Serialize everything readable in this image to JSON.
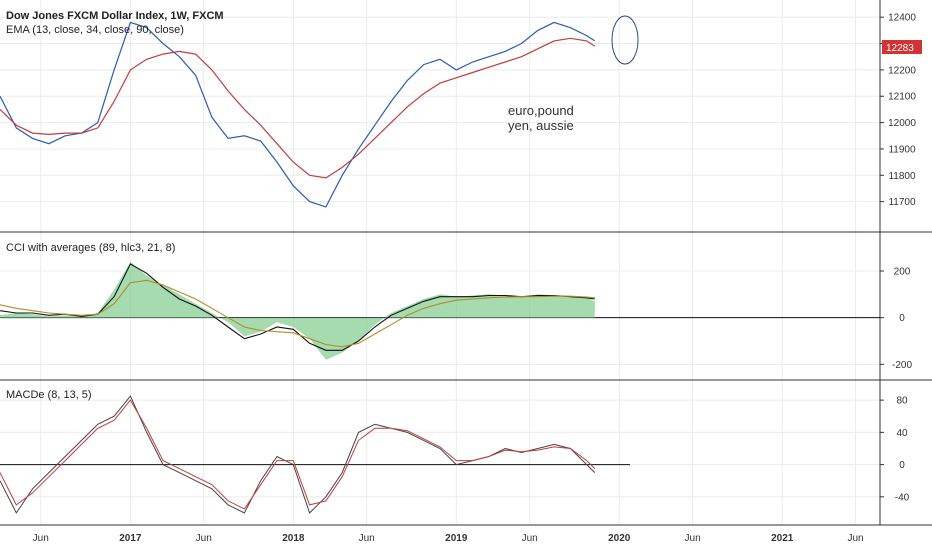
{
  "colors": {
    "blue": "#2a5cb5",
    "red": "#c43c3c",
    "green_fill": "#7fcc8b",
    "black": "#111111",
    "olive": "#b38b2a",
    "grid": "#e8ecf0",
    "badge": "#d23434"
  },
  "price_panel": {
    "title": "Dow Jones FXCM Dollar Index, 1W, FXCM",
    "indicator_label": "EMA (13, close, 34, close, 90, close)",
    "annotation_line1": "euro,pound",
    "annotation_line2": "yen, aussie",
    "last_price_badge": "12283"
  },
  "cci_panel": {
    "title": "CCI with averages (89, hlc3, 21, 8)"
  },
  "macd_panel": {
    "title": "MACDe (8, 13, 5)"
  },
  "chart_data": [
    {
      "type": "line",
      "x": [
        2016.2,
        2016.3,
        2016.4,
        2016.5,
        2016.6,
        2016.7,
        2016.8,
        2016.9,
        2017.0,
        2017.1,
        2017.2,
        2017.3,
        2017.4,
        2017.5,
        2017.6,
        2017.7,
        2017.8,
        2017.9,
        2018.0,
        2018.1,
        2018.2,
        2018.3,
        2018.4,
        2018.5,
        2018.6,
        2018.7,
        2018.8,
        2018.9,
        2019.0,
        2019.1,
        2019.2,
        2019.3,
        2019.4,
        2019.5,
        2019.6,
        2019.7,
        2019.8,
        2019.85
      ],
      "series": [
        {
          "values": [
            12100,
            11980,
            11940,
            11920,
            11950,
            11960,
            12000,
            12200,
            12380,
            12360,
            12300,
            12250,
            12180,
            12020,
            11940,
            11950,
            11930,
            11850,
            11760,
            11700,
            11680,
            11800,
            11900,
            11990,
            12080,
            12160,
            12220,
            12240,
            12200,
            12230,
            12250,
            12270,
            12300,
            12350,
            12380,
            12360,
            12330,
            12310
          ]
        },
        {
          "values": [
            12050,
            11990,
            11960,
            11955,
            11960,
            11960,
            11980,
            12080,
            12200,
            12240,
            12260,
            12270,
            12260,
            12200,
            12120,
            12050,
            11990,
            11920,
            11850,
            11800,
            11790,
            11830,
            11880,
            11940,
            12000,
            12060,
            12110,
            12150,
            12170,
            12190,
            12210,
            12230,
            12250,
            12280,
            12310,
            12320,
            12310,
            12290
          ]
        }
      ],
      "ylim": [
        11600,
        12450
      ],
      "y_ticks": [
        12400,
        12300,
        12200,
        12100,
        12000,
        11900,
        11800,
        11700
      ]
    },
    {
      "type": "area",
      "x": [
        2016.2,
        2016.3,
        2016.4,
        2016.5,
        2016.6,
        2016.7,
        2016.8,
        2016.9,
        2017.0,
        2017.1,
        2017.2,
        2017.3,
        2017.4,
        2017.5,
        2017.6,
        2017.7,
        2017.8,
        2017.9,
        2018.0,
        2018.1,
        2018.2,
        2018.3,
        2018.4,
        2018.5,
        2018.6,
        2018.7,
        2018.8,
        2018.9,
        2019.0,
        2019.1,
        2019.2,
        2019.3,
        2019.4,
        2019.5,
        2019.6,
        2019.7,
        2019.8,
        2019.85
      ],
      "series": [
        {
          "values": [
            10,
            20,
            15,
            5,
            10,
            5,
            20,
            120,
            240,
            180,
            140,
            100,
            60,
            20,
            -20,
            -80,
            -60,
            -20,
            -40,
            -90,
            -180,
            -150,
            -100,
            -30,
            20,
            50,
            80,
            100,
            90,
            95,
            100,
            95,
            90,
            100,
            95,
            90,
            85,
            70
          ]
        },
        {
          "values": [
            30,
            20,
            20,
            10,
            15,
            5,
            15,
            90,
            230,
            190,
            130,
            80,
            50,
            10,
            -40,
            -90,
            -70,
            -40,
            -50,
            -110,
            -140,
            -140,
            -100,
            -40,
            10,
            40,
            70,
            90,
            90,
            90,
            95,
            95,
            90,
            95,
            95,
            90,
            85,
            80
          ]
        },
        {
          "values": [
            55,
            40,
            30,
            20,
            15,
            10,
            15,
            60,
            150,
            160,
            140,
            110,
            80,
            40,
            0,
            -40,
            -55,
            -60,
            -65,
            -90,
            -115,
            -125,
            -110,
            -70,
            -30,
            10,
            40,
            60,
            75,
            80,
            85,
            88,
            90,
            90,
            92,
            92,
            88,
            85
          ]
        }
      ],
      "ylim": [
        -250,
        350
      ],
      "y_ticks": [
        200,
        0,
        -200
      ]
    },
    {
      "type": "line",
      "x": [
        2016.2,
        2016.3,
        2016.4,
        2016.5,
        2016.6,
        2016.7,
        2016.8,
        2016.9,
        2017.0,
        2017.1,
        2017.2,
        2017.3,
        2017.4,
        2017.5,
        2017.6,
        2017.7,
        2017.8,
        2017.9,
        2018.0,
        2018.1,
        2018.2,
        2018.3,
        2018.4,
        2018.5,
        2018.6,
        2018.7,
        2018.8,
        2018.9,
        2019.0,
        2019.1,
        2019.2,
        2019.3,
        2019.4,
        2019.5,
        2019.6,
        2019.7,
        2019.8,
        2019.85
      ],
      "series": [
        {
          "values": [
            -20,
            -60,
            -30,
            -10,
            10,
            30,
            50,
            60,
            85,
            40,
            0,
            -10,
            -20,
            -30,
            -50,
            -60,
            -20,
            10,
            0,
            -60,
            -40,
            -10,
            40,
            50,
            45,
            40,
            30,
            20,
            0,
            5,
            10,
            20,
            15,
            20,
            25,
            20,
            0,
            -10
          ]
        },
        {
          "values": [
            -10,
            -50,
            -35,
            -15,
            5,
            25,
            45,
            55,
            80,
            45,
            5,
            -5,
            -15,
            -25,
            -45,
            -55,
            -25,
            5,
            5,
            -50,
            -45,
            -15,
            30,
            45,
            45,
            42,
            32,
            22,
            5,
            5,
            10,
            18,
            16,
            18,
            22,
            20,
            5,
            -5
          ]
        }
      ],
      "ylim": [
        -70,
        100
      ],
      "y_ticks": [
        80,
        40,
        0,
        -40
      ]
    }
  ],
  "x_axis": {
    "ticks": [
      {
        "label": "Jun",
        "x": 2016.45,
        "bold": false
      },
      {
        "label": "2017",
        "x": 2017.0,
        "bold": true
      },
      {
        "label": "Jun",
        "x": 2017.45,
        "bold": false
      },
      {
        "label": "2018",
        "x": 2018.0,
        "bold": true
      },
      {
        "label": "Jun",
        "x": 2018.45,
        "bold": false
      },
      {
        "label": "2019",
        "x": 2019.0,
        "bold": true
      },
      {
        "label": "Jun",
        "x": 2019.45,
        "bold": false
      },
      {
        "label": "2020",
        "x": 2020.0,
        "bold": true
      },
      {
        "label": "Jun",
        "x": 2020.45,
        "bold": false
      },
      {
        "label": "2021",
        "x": 2021.0,
        "bold": true
      },
      {
        "label": "Jun",
        "x": 2021.45,
        "bold": false
      }
    ],
    "xlim": [
      2016.2,
      2021.6
    ]
  }
}
